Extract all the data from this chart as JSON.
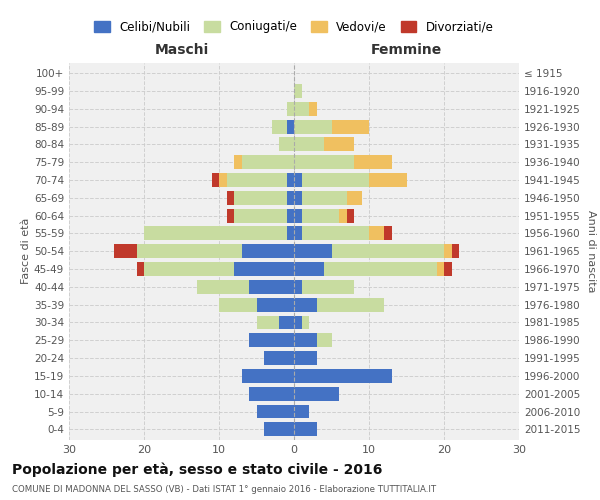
{
  "age_groups": [
    "0-4",
    "5-9",
    "10-14",
    "15-19",
    "20-24",
    "25-29",
    "30-34",
    "35-39",
    "40-44",
    "45-49",
    "50-54",
    "55-59",
    "60-64",
    "65-69",
    "70-74",
    "75-79",
    "80-84",
    "85-89",
    "90-94",
    "95-99",
    "100+"
  ],
  "birth_years": [
    "2011-2015",
    "2006-2010",
    "2001-2005",
    "1996-2000",
    "1991-1995",
    "1986-1990",
    "1981-1985",
    "1976-1980",
    "1971-1975",
    "1966-1970",
    "1961-1965",
    "1956-1960",
    "1951-1955",
    "1946-1950",
    "1941-1945",
    "1936-1940",
    "1931-1935",
    "1926-1930",
    "1921-1925",
    "1916-1920",
    "≤ 1915"
  ],
  "maschi": {
    "celibi": [
      4,
      5,
      6,
      7,
      4,
      6,
      2,
      5,
      6,
      8,
      7,
      1,
      1,
      1,
      1,
      0,
      0,
      1,
      0,
      0,
      0
    ],
    "coniugati": [
      0,
      0,
      0,
      0,
      0,
      0,
      3,
      5,
      7,
      12,
      14,
      19,
      7,
      7,
      8,
      7,
      2,
      2,
      1,
      0,
      0
    ],
    "vedovi": [
      0,
      0,
      0,
      0,
      0,
      0,
      0,
      0,
      0,
      0,
      0,
      0,
      0,
      0,
      1,
      1,
      0,
      0,
      0,
      0,
      0
    ],
    "divorziati": [
      0,
      0,
      0,
      0,
      0,
      0,
      0,
      0,
      0,
      1,
      3,
      0,
      1,
      1,
      1,
      0,
      0,
      0,
      0,
      0,
      0
    ]
  },
  "femmine": {
    "nubili": [
      3,
      2,
      6,
      13,
      3,
      3,
      1,
      3,
      1,
      4,
      5,
      1,
      1,
      1,
      1,
      0,
      0,
      0,
      0,
      0,
      0
    ],
    "coniugate": [
      0,
      0,
      0,
      0,
      0,
      2,
      1,
      9,
      7,
      15,
      15,
      9,
      5,
      6,
      9,
      8,
      4,
      5,
      2,
      1,
      0
    ],
    "vedove": [
      0,
      0,
      0,
      0,
      0,
      0,
      0,
      0,
      0,
      1,
      1,
      2,
      1,
      2,
      5,
      5,
      4,
      5,
      1,
      0,
      0
    ],
    "divorziate": [
      0,
      0,
      0,
      0,
      0,
      0,
      0,
      0,
      0,
      1,
      1,
      1,
      1,
      0,
      0,
      0,
      0,
      0,
      0,
      0,
      0
    ]
  },
  "colors": {
    "celibi_nubili": "#4472C4",
    "coniugati": "#c8dca0",
    "vedovi": "#f0c060",
    "divorziati": "#c0392b"
  },
  "title": "Popolazione per età, sesso e stato civile - 2016",
  "subtitle": "COMUNE DI MADONNA DEL SASSO (VB) - Dati ISTAT 1° gennaio 2016 - Elaborazione TUTTITALIA.IT",
  "xlabel_left": "Maschi",
  "xlabel_right": "Femmine",
  "ylabel_left": "Fasce di età",
  "ylabel_right": "Anni di nascita",
  "xlim": 30,
  "legend_labels": [
    "Celibi/Nubili",
    "Coniugati/e",
    "Vedovi/e",
    "Divorziati/e"
  ],
  "bg_color": "#ffffff",
  "grid_color": "#cccccc"
}
